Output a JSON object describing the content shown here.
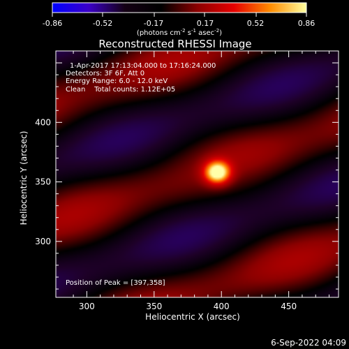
{
  "colorbar": {
    "tick_labels": [
      "-0.86",
      "-0.52",
      "-0.17",
      "0.17",
      "0.52",
      "0.86"
    ],
    "tick_values": [
      -0.86,
      -0.52,
      -0.17,
      0.17,
      0.52,
      0.86
    ],
    "unit_main": "(photons cm",
    "unit_sup1": "-2",
    "unit_mid": " s",
    "unit_sup2": "-1",
    "unit_mid2": " asec",
    "unit_sup3": "-2",
    "unit_end": ")",
    "range": [
      -0.86,
      0.86
    ],
    "colors": [
      "#0000ff",
      "#3b00c8",
      "#140014",
      "#000000",
      "#8c0000",
      "#e60000",
      "#ff8c00",
      "#ffffa0"
    ]
  },
  "chart_data": {
    "type": "heatmap",
    "title": "Reconstructed RHESSI Image",
    "xlabel": "Heliocentric X (arcsec)",
    "ylabel": "Heliocentric Y (arcsec)",
    "xlim": [
      277,
      487
    ],
    "ylim": [
      253,
      460
    ],
    "xticks": [
      300,
      350,
      400,
      450
    ],
    "yticks": [
      300,
      350,
      400
    ],
    "peak": [
      397,
      358
    ],
    "annotations": [
      "1-Apr-2017 17:13:04.000 to 17:16:24.000",
      "Detectors: 3F 6F, Att 0",
      "Energy Range: 6.0 - 12.0 keV",
      "Clean    Total counts: 1.12E+05"
    ],
    "peak_label": "Position of Peak = [397,358]"
  },
  "footer": {
    "date": "6-Sep-2022 04:09"
  }
}
